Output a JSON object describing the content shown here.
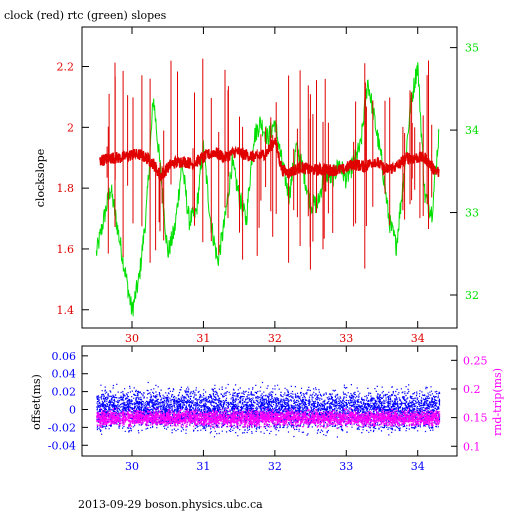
{
  "title": "clock (red) rtc (green) slopes",
  "footer": "2013-09-29  boson.physics.ubc.ca",
  "colors": {
    "clock": "#e00000",
    "rtc": "#00e000",
    "offset": "#0000ff",
    "roundtrip": "#ff00ff",
    "axis": "#000000"
  },
  "chart_data": [
    {
      "type": "line",
      "title": "clock (red) rtc (green) slopes",
      "xlim": [
        29.3,
        34.55
      ],
      "x_ticks": [
        30,
        31,
        32,
        33,
        34
      ],
      "ylabel": "clockslope",
      "ylim": [
        1.34,
        2.33
      ],
      "y_ticks": [
        1.4,
        1.6,
        1.8,
        2,
        2.2
      ],
      "y2lim": [
        31.6,
        35.25
      ],
      "y2_ticks": [
        32,
        33,
        34,
        35
      ],
      "series": [
        {
          "name": "clock",
          "axis": "left",
          "x": [
            29.55,
            29.7,
            29.85,
            30.0,
            30.1,
            30.2,
            30.3,
            30.4,
            30.55,
            30.7,
            30.85,
            31.0,
            31.15,
            31.3,
            31.45,
            31.6,
            31.75,
            31.9,
            32.0,
            32.1,
            32.2,
            32.35,
            32.5,
            32.65,
            32.8,
            32.95,
            33.1,
            33.25,
            33.4,
            33.55,
            33.7,
            33.85,
            34.0,
            34.1,
            34.2,
            34.3
          ],
          "values": [
            1.89,
            1.9,
            1.9,
            1.91,
            1.91,
            1.9,
            1.88,
            1.84,
            1.88,
            1.89,
            1.88,
            1.9,
            1.92,
            1.9,
            1.92,
            1.91,
            1.9,
            1.92,
            1.96,
            1.86,
            1.85,
            1.87,
            1.86,
            1.86,
            1.86,
            1.86,
            1.88,
            1.87,
            1.89,
            1.86,
            1.87,
            1.9,
            1.9,
            1.9,
            1.87,
            1.85
          ]
        },
        {
          "name": "rtc",
          "axis": "right",
          "x": [
            29.5,
            29.6,
            29.7,
            29.8,
            29.9,
            30.0,
            30.1,
            30.2,
            30.3,
            30.4,
            30.5,
            30.6,
            30.7,
            30.8,
            30.9,
            31.0,
            31.1,
            31.2,
            31.3,
            31.4,
            31.5,
            31.6,
            31.7,
            31.8,
            31.9,
            32.0,
            32.1,
            32.2,
            32.3,
            32.4,
            32.5,
            32.6,
            32.7,
            32.8,
            32.9,
            33.0,
            33.1,
            33.2,
            33.3,
            33.4,
            33.5,
            33.6,
            33.7,
            33.8,
            33.9,
            34.0,
            34.1,
            34.2,
            34.3
          ],
          "values": [
            32.5,
            32.9,
            33.3,
            32.8,
            32.3,
            31.8,
            32.2,
            33.0,
            34.4,
            33.5,
            32.5,
            32.8,
            33.6,
            32.9,
            33.0,
            33.8,
            32.9,
            32.4,
            32.9,
            33.6,
            33.2,
            32.9,
            33.9,
            34.1,
            33.9,
            34.1,
            33.6,
            33.2,
            33.8,
            33.5,
            33.1,
            33.1,
            33.5,
            33.4,
            33.6,
            33.4,
            33.6,
            33.8,
            34.6,
            34.1,
            33.6,
            32.9,
            32.6,
            33.4,
            34.3,
            34.8,
            33.2,
            33.0,
            34.0
          ]
        }
      ]
    },
    {
      "type": "scatter",
      "xlim": [
        29.3,
        34.55
      ],
      "x_ticks": [
        30,
        31,
        32,
        33,
        34
      ],
      "ylabel": "offset(ms)",
      "ylim": [
        -0.052,
        0.071
      ],
      "y_ticks": [
        -0.04,
        -0.02,
        0,
        0.02,
        0.04,
        0.06
      ],
      "y2label": "rnd-trip(ms)",
      "y2lim": [
        0.083,
        0.275
      ],
      "y2_ticks": [
        0.1,
        0.15,
        0.2,
        0.25
      ],
      "series": [
        {
          "name": "offset",
          "axis": "left",
          "x_range": [
            29.5,
            34.3
          ],
          "center": 0.0,
          "spread": 0.02
        },
        {
          "name": "rnd-trip",
          "axis": "right",
          "x_range": [
            29.5,
            34.3
          ],
          "center": 0.15,
          "spread": 0.012
        }
      ]
    }
  ]
}
